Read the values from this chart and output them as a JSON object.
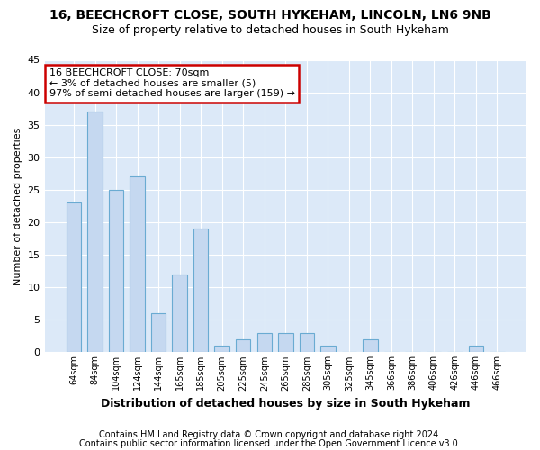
{
  "title1": "16, BEECHCROFT CLOSE, SOUTH HYKEHAM, LINCOLN, LN6 9NB",
  "title2": "Size of property relative to detached houses in South Hykeham",
  "xlabel": "Distribution of detached houses by size in South Hykeham",
  "ylabel": "Number of detached properties",
  "footnote1": "Contains HM Land Registry data © Crown copyright and database right 2024.",
  "footnote2": "Contains public sector information licensed under the Open Government Licence v3.0.",
  "categories": [
    "64sqm",
    "84sqm",
    "104sqm",
    "124sqm",
    "144sqm",
    "165sqm",
    "185sqm",
    "205sqm",
    "225sqm",
    "245sqm",
    "265sqm",
    "285sqm",
    "305sqm",
    "325sqm",
    "345sqm",
    "366sqm",
    "386sqm",
    "406sqm",
    "426sqm",
    "446sqm",
    "466sqm"
  ],
  "values": [
    23,
    37,
    25,
    27,
    6,
    12,
    19,
    1,
    2,
    3,
    3,
    3,
    1,
    0,
    2,
    0,
    0,
    0,
    0,
    1,
    0
  ],
  "bar_color": "#c5d8f0",
  "bar_edge_color": "#6aabd2",
  "annotation_box_text": "16 BEECHCROFT CLOSE: 70sqm\n← 3% of detached houses are smaller (5)\n97% of semi-detached houses are larger (159) →",
  "annotation_box_color": "#cc0000",
  "ylim": [
    0,
    45
  ],
  "yticks": [
    0,
    5,
    10,
    15,
    20,
    25,
    30,
    35,
    40,
    45
  ],
  "bg_color": "#dce9f8",
  "grid_color": "#ffffff",
  "title1_fontsize": 10,
  "title2_fontsize": 9,
  "xlabel_fontsize": 9,
  "ylabel_fontsize": 8,
  "footnote_fontsize": 7,
  "bar_width": 0.7
}
